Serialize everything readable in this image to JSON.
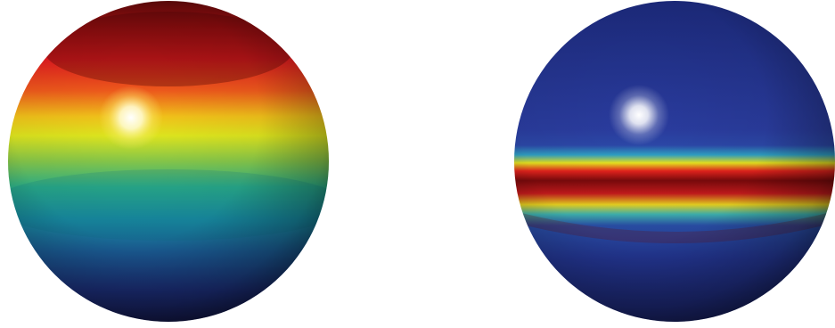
{
  "figure": {
    "panels": [
      {
        "id": "left",
        "shading": "smooth-gradient",
        "colormap": [
          "#5a0a0a",
          "#e4191c",
          "#f07a1a",
          "#f2e21a",
          "#7ec84a",
          "#1fa9a0",
          "#1e5f9a",
          "#1b2266"
        ],
        "highlight": "#ffffff"
      },
      {
        "id": "right",
        "shading": "band",
        "colormap": [
          "#2b3a9a",
          "#1b2266",
          "#3fa9c8",
          "#f2e21a",
          "#e4191c",
          "#6a0a0a"
        ],
        "highlight": "#ffffff"
      }
    ]
  }
}
